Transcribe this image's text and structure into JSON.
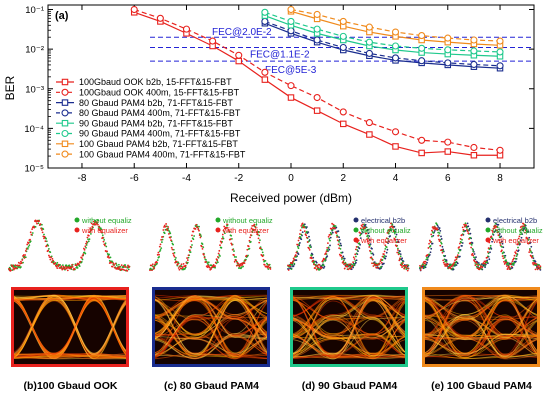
{
  "panel_label": "(a)",
  "colors": {
    "ook": "#e8221e",
    "pam80": "#1a2d8f",
    "pam90": "#1fc98c",
    "pam100": "#f08a1c",
    "fec": "#2323d6",
    "green_dot": "#23a829",
    "red_dot": "#e8221e",
    "navy_dot": "#24306e"
  },
  "chart_data": {
    "type": "line",
    "xlabel": "Received power (dBm)",
    "ylabel": "BER",
    "xlim": [
      -9.3,
      9.3
    ],
    "ylim": [
      1e-05,
      0.13
    ],
    "yscale": "log",
    "xticks": [
      -8,
      -6,
      -4,
      -2,
      0,
      2,
      4,
      6,
      8
    ],
    "yticks": [
      {
        "v": 0.1,
        "label": "10⁻¹"
      },
      {
        "v": 0.01,
        "label": "10⁻²"
      },
      {
        "v": 0.001,
        "label": "10⁻³"
      },
      {
        "v": 0.0001,
        "label": "10⁻⁴"
      },
      {
        "v": 1e-05,
        "label": "10⁻⁵"
      }
    ],
    "legend_position": "bottom-left",
    "thresholds": [
      {
        "label": "FEC@2.0E-2",
        "value": 0.02
      },
      {
        "label": "FEC@1.1E-2",
        "value": 0.011
      },
      {
        "label": "FEC@5E-3",
        "value": 0.005
      }
    ],
    "series": [
      {
        "name": "100Gbaud OOK b2b, 15-FFT&15-FBT",
        "color": "#e8221e",
        "dashed": false,
        "marker": "square",
        "x": [
          -6,
          -5,
          -4,
          -3,
          -2,
          -1,
          0,
          1,
          2,
          3,
          4,
          5,
          6,
          7,
          8
        ],
        "y": [
          0.085,
          0.05,
          0.025,
          0.012,
          0.005,
          0.0017,
          0.0006,
          0.00028,
          0.00013,
          7e-05,
          3.5e-05,
          2.4e-05,
          2.6e-05,
          2.1e-05,
          2.1e-05
        ]
      },
      {
        "name": "100Gbaud OOK 400m, 15-FFT&15-FBT",
        "color": "#e8221e",
        "dashed": true,
        "marker": "circle",
        "x": [
          -6,
          -5,
          -4,
          -3,
          -2,
          -1,
          0,
          1,
          2,
          3,
          4,
          5,
          6,
          7,
          8
        ],
        "y": [
          0.1,
          0.06,
          0.032,
          0.016,
          0.007,
          0.0026,
          0.0012,
          0.0006,
          0.00026,
          0.00014,
          8.2e-05,
          5e-05,
          4.5e-05,
          3.3e-05,
          2.8e-05
        ]
      },
      {
        "name": "80 Gbaud PAM4 b2b, 71-FFT&15-FBT",
        "color": "#1a2d8f",
        "dashed": false,
        "marker": "square",
        "x": [
          -1,
          0,
          1,
          2,
          3,
          4,
          5,
          6,
          7,
          8
        ],
        "y": [
          0.045,
          0.025,
          0.015,
          0.0095,
          0.0068,
          0.0052,
          0.0045,
          0.004,
          0.0036,
          0.0033
        ]
      },
      {
        "name": "80 Gbaud PAM4 400m, 71-FFT&15-FBT",
        "color": "#1a2d8f",
        "dashed": true,
        "marker": "circle",
        "x": [
          -1,
          0,
          1,
          2,
          3,
          4,
          5,
          6,
          7,
          8
        ],
        "y": [
          0.05,
          0.029,
          0.017,
          0.011,
          0.0078,
          0.006,
          0.0051,
          0.0045,
          0.0041,
          0.0038
        ]
      },
      {
        "name": "90 Gbaud PAM4 b2b, 71-FFT&15-FBT",
        "color": "#1fc98c",
        "dashed": false,
        "marker": "square",
        "x": [
          -1,
          0,
          1,
          2,
          3,
          4,
          5,
          6,
          7,
          8
        ],
        "y": [
          0.07,
          0.04,
          0.025,
          0.017,
          0.012,
          0.0095,
          0.0082,
          0.0075,
          0.007,
          0.0066
        ]
      },
      {
        "name": "90 Gbaud PAM4 400m, 71-FFT&15-FBT",
        "color": "#1fc98c",
        "dashed": true,
        "marker": "circle",
        "x": [
          -1,
          0,
          1,
          2,
          3,
          4,
          5,
          6,
          7,
          8
        ],
        "y": [
          0.085,
          0.05,
          0.032,
          0.021,
          0.015,
          0.012,
          0.0105,
          0.0096,
          0.009,
          0.0085
        ]
      },
      {
        "name": "100 Gbaud PAM4 b2b, 71-FFT&15-FBT",
        "color": "#f08a1c",
        "dashed": false,
        "marker": "square",
        "x": [
          0,
          1,
          2,
          3,
          4,
          5,
          6,
          7,
          8
        ],
        "y": [
          0.09,
          0.058,
          0.038,
          0.027,
          0.021,
          0.017,
          0.015,
          0.0135,
          0.0125
        ]
      },
      {
        "name": "100 Gbaud PAM4 400m, 71-FFT&15-FBT",
        "color": "#f08a1c",
        "dashed": true,
        "marker": "circle",
        "x": [
          0,
          1,
          2,
          3,
          4,
          5,
          6,
          7,
          8
        ],
        "y": [
          0.1,
          0.075,
          0.05,
          0.036,
          0.027,
          0.022,
          0.019,
          0.017,
          0.016
        ]
      }
    ]
  },
  "eye_panels": [
    {
      "caption_prefix": "(b)",
      "caption_text": "100 Gbaud OOK",
      "border": "#e8221e",
      "levels": 2,
      "legend": [
        {
          "label": "without equalizer",
          "color": "#23a829"
        },
        {
          "label": "with equalizer",
          "color": "#e8221e"
        }
      ]
    },
    {
      "caption_prefix": "(c)",
      "caption_text": "80 Gbaud PAM4",
      "border": "#1a2d8f",
      "levels": 4,
      "legend": [
        {
          "label": "without equalizer",
          "color": "#23a829"
        },
        {
          "label": "with equalizer",
          "color": "#e8221e"
        }
      ]
    },
    {
      "caption_prefix": "(d)",
      "caption_text": "90 Gbaud PAM4",
      "border": "#1fc98c",
      "levels": 4,
      "legend": [
        {
          "label": "electrical b2b",
          "color": "#24306e"
        },
        {
          "label": "without equalizer",
          "color": "#23a829"
        },
        {
          "label": "with equalizer",
          "color": "#e8221e"
        }
      ]
    },
    {
      "caption_prefix": "(e)",
      "caption_text": "100 Gbaud PAM4",
      "border": "#f08a1c",
      "levels": 4,
      "legend": [
        {
          "label": "electrical b2b",
          "color": "#24306e"
        },
        {
          "label": "without equalizer",
          "color": "#23a829"
        },
        {
          "label": "with equalizer",
          "color": "#e8221e"
        }
      ]
    }
  ]
}
